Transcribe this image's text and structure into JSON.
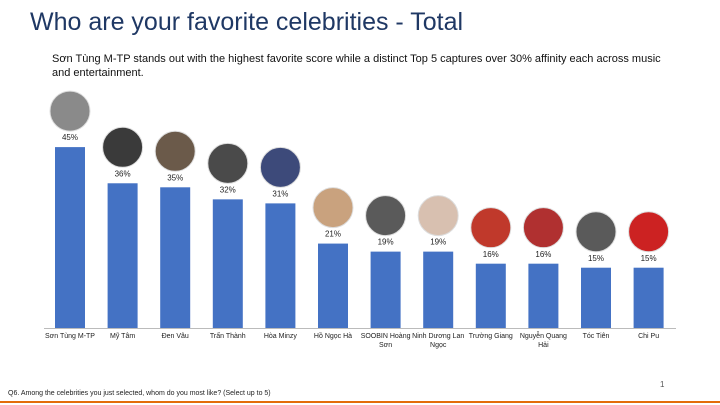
{
  "chart_data": {
    "type": "bar",
    "title": "Who are your favorite celebrities - Total",
    "subtitle": "Sơn Tùng M-TP stands out with the highest favorite score while a distinct Top 5 captures over 30% affinity each across music and entertainment.",
    "categories": [
      "Sơn Tùng M-TP",
      "Mỹ Tâm",
      "Đen Vâu",
      "Trấn Thành",
      "Hòa Minzy",
      "Hồ Ngọc Hà",
      "SOOBIN Hoàng Sơn",
      "Ninh Dương Lan Ngọc",
      "Trường Giang",
      "Nguyễn Quang Hải",
      "Tóc Tiên",
      "Chi Pu"
    ],
    "values": [
      45,
      36,
      35,
      32,
      31,
      21,
      19,
      19,
      16,
      16,
      15,
      15
    ],
    "value_labels": [
      "45%",
      "36%",
      "35%",
      "32%",
      "31%",
      "21%",
      "19%",
      "19%",
      "16%",
      "16%",
      "15%",
      "15%"
    ],
    "color": "#4472c4",
    "footnote": "Q6. Among the celebrities you just selected, whom do you most like? (Select up to 5)",
    "page_number": "1"
  }
}
